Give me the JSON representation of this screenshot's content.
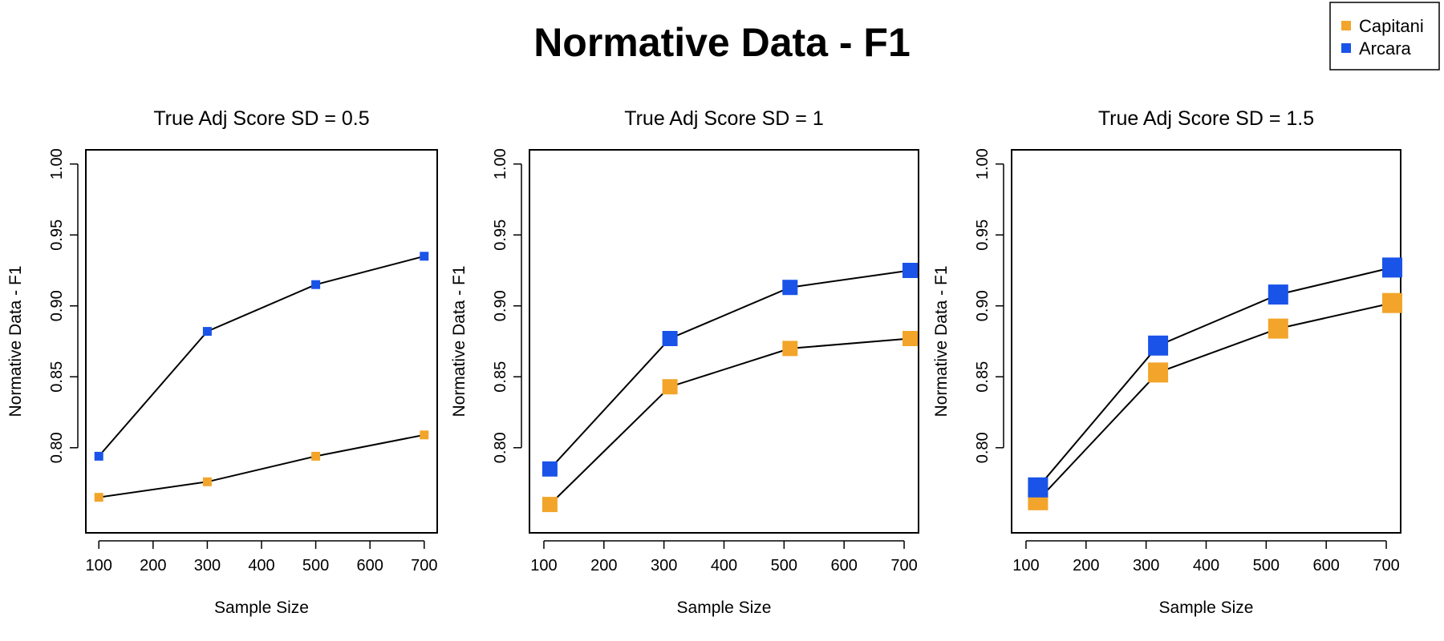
{
  "figure": {
    "title": "Normative Data - F1"
  },
  "legend": {
    "placement": "top-right",
    "entries": [
      {
        "label": "Capitani",
        "color": "#F2A52A"
      },
      {
        "label": "Arcara",
        "color": "#1A53E8"
      }
    ]
  },
  "chart_data": [
    {
      "type": "line",
      "title": "True Adj Score SD = 0.5",
      "xlabel": "Sample Size",
      "ylabel": "Normative Data - F1",
      "xlim": [
        100,
        700
      ],
      "ylim": [
        0.75,
        1.0
      ],
      "x_ticks": [
        100,
        200,
        300,
        400,
        500,
        600,
        700
      ],
      "y_ticks": [
        0.8,
        0.85,
        0.9,
        0.95,
        1.0
      ],
      "series": [
        {
          "name": "Capitani",
          "color": "#F2A52A",
          "marker_size": "small",
          "points": [
            [
              100,
              0.765
            ],
            [
              300,
              0.776
            ],
            [
              500,
              0.794
            ],
            [
              700,
              0.809
            ]
          ]
        },
        {
          "name": "Arcara",
          "color": "#1A53E8",
          "marker_size": "small",
          "points": [
            [
              100,
              0.794
            ],
            [
              300,
              0.882
            ],
            [
              500,
              0.915
            ],
            [
              700,
              0.935
            ]
          ]
        }
      ]
    },
    {
      "type": "line",
      "title": "True Adj Score SD = 1",
      "xlabel": "Sample Size",
      "ylabel": "Normative Data - F1",
      "xlim": [
        100,
        700
      ],
      "ylim": [
        0.75,
        1.0
      ],
      "x_ticks": [
        100,
        200,
        300,
        400,
        500,
        600,
        700
      ],
      "y_ticks": [
        0.8,
        0.85,
        0.9,
        0.95,
        1.0
      ],
      "series": [
        {
          "name": "Capitani",
          "color": "#F2A52A",
          "marker_size": "medium",
          "points": [
            [
              110,
              0.76
            ],
            [
              310,
              0.843
            ],
            [
              510,
              0.87
            ],
            [
              710,
              0.877
            ]
          ]
        },
        {
          "name": "Arcara",
          "color": "#1A53E8",
          "marker_size": "medium",
          "points": [
            [
              110,
              0.785
            ],
            [
              310,
              0.877
            ],
            [
              510,
              0.913
            ],
            [
              710,
              0.925
            ]
          ]
        }
      ]
    },
    {
      "type": "line",
      "title": "True Adj Score SD = 1.5",
      "xlabel": "Sample Size",
      "ylabel": "Normative Data - F1",
      "xlim": [
        100,
        700
      ],
      "ylim": [
        0.75,
        1.0
      ],
      "x_ticks": [
        100,
        200,
        300,
        400,
        500,
        600,
        700
      ],
      "y_ticks": [
        0.8,
        0.85,
        0.9,
        0.95,
        1.0
      ],
      "series": [
        {
          "name": "Capitani",
          "color": "#F2A52A",
          "marker_size": "large",
          "points": [
            [
              120,
              0.763
            ],
            [
              320,
              0.853
            ],
            [
              520,
              0.884
            ],
            [
              710,
              0.902
            ]
          ]
        },
        {
          "name": "Arcara",
          "color": "#1A53E8",
          "marker_size": "large",
          "points": [
            [
              120,
              0.772
            ],
            [
              320,
              0.872
            ],
            [
              520,
              0.908
            ],
            [
              710,
              0.927
            ]
          ]
        }
      ]
    }
  ]
}
